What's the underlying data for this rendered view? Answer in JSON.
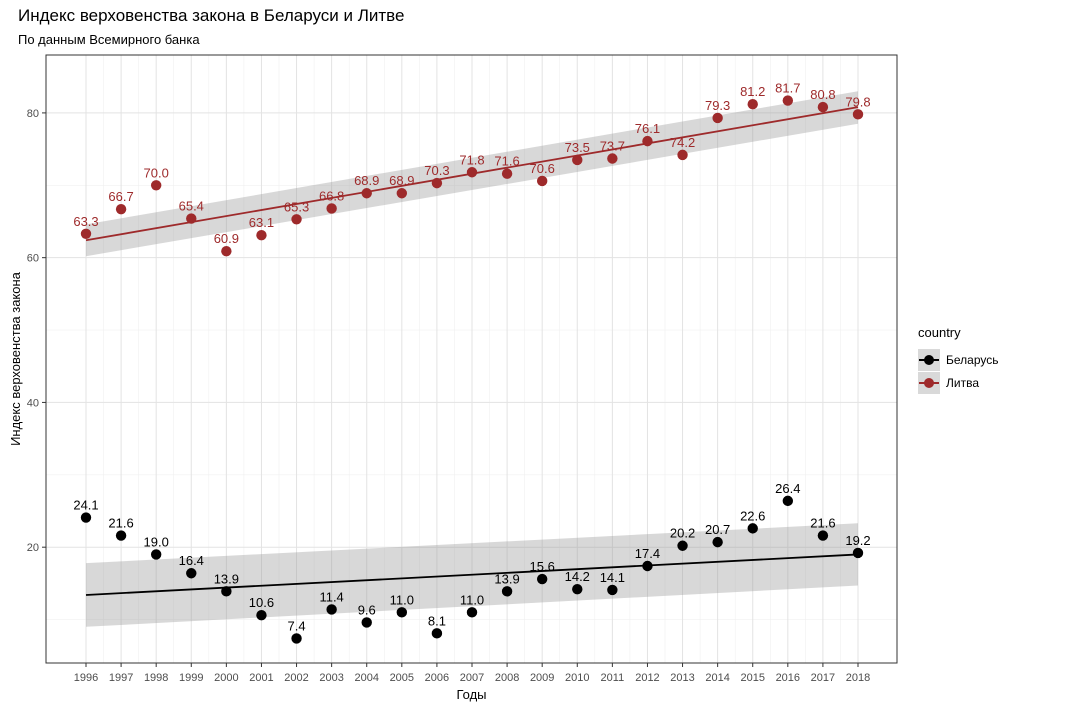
{
  "title": "Индекс верховенства закона в Беларуси и Литве",
  "subtitle": "По данным Всемирного банка",
  "legend": {
    "title": "country",
    "items": [
      {
        "label": "Беларусь",
        "color": "#000000"
      },
      {
        "label": "Литва",
        "color": "#9e2a2b"
      }
    ]
  },
  "chart_data": {
    "type": "scatter",
    "title": "Индекс верховенства закона в Беларуси и Литве",
    "subtitle": "По данным Всемирного банка",
    "xlabel": "Годы",
    "ylabel": "Индекс верховенства закона",
    "x": [
      1996,
      1997,
      1998,
      1999,
      2000,
      2001,
      2002,
      2003,
      2004,
      2005,
      2006,
      2007,
      2008,
      2009,
      2010,
      2011,
      2012,
      2013,
      2014,
      2015,
      2016,
      2017,
      2018
    ],
    "y_ticks": [
      20,
      40,
      60,
      80
    ],
    "ylim": [
      4,
      88
    ],
    "grid": true,
    "legend_position": "right",
    "series": [
      {
        "name": "Беларусь",
        "color": "#000000",
        "values": [
          24.1,
          21.6,
          19.0,
          16.4,
          13.9,
          10.6,
          7.4,
          11.4,
          9.6,
          11.0,
          8.1,
          11.0,
          13.9,
          15.6,
          14.2,
          14.1,
          17.4,
          20.2,
          20.7,
          22.6,
          26.4,
          21.6,
          19.2
        ],
        "labels": [
          "24.1",
          "21.6",
          "19.0",
          "16.4",
          "13.9",
          "10.6",
          "7.4",
          "11.4",
          "9.6",
          "11.0",
          "8.1",
          "11.0",
          "13.9",
          "15.6",
          "14.2",
          "14.1",
          "17.4",
          "20.2",
          "20.7",
          "22.6",
          "26.4",
          "21.6",
          "19.2"
        ],
        "trend": {
          "start": 13.4,
          "end": 19.0,
          "ci_start": [
            9.0,
            17.8
          ],
          "ci_end": [
            14.7,
            23.3
          ]
        }
      },
      {
        "name": "Литва",
        "color": "#9e2a2b",
        "values": [
          63.3,
          66.7,
          70.0,
          65.4,
          60.9,
          63.1,
          65.3,
          66.8,
          68.9,
          68.9,
          70.3,
          71.8,
          71.6,
          70.6,
          73.5,
          73.7,
          76.1,
          74.2,
          79.3,
          81.2,
          81.7,
          80.8,
          79.8
        ],
        "labels": [
          "63.3",
          "66.7",
          "70.0",
          "65.4",
          "60.9",
          "63.1",
          "65.3",
          "66.8",
          "68.9",
          "68.9",
          "70.3",
          "71.8",
          "71.6",
          "70.6",
          "73.5",
          "73.7",
          "76.1",
          "74.2",
          "79.3",
          "81.2",
          "81.7",
          "80.8",
          "79.8"
        ],
        "trend": {
          "start": 62.4,
          "end": 80.8,
          "ci_start": [
            60.2,
            64.6
          ],
          "ci_end": [
            78.5,
            83.0
          ]
        }
      }
    ]
  }
}
